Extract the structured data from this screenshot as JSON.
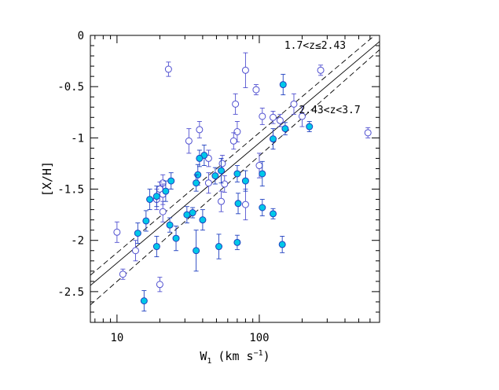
{
  "chart_data": {
    "type": "scatter",
    "xscale": "log",
    "xlim": [
      6.5,
      700
    ],
    "ylim": [
      -2.8,
      0
    ],
    "xlabel": "W",
    "xlabel_sub": "1",
    "xlabel_units": "(km s",
    "xlabel_units_sup": "−1",
    "xlabel_units_close": ")",
    "ylabel": "[X/H]",
    "x_ticks": [
      {
        "value": 10,
        "label": "10"
      },
      {
        "value": 100,
        "label": "100"
      }
    ],
    "y_ticks": [
      {
        "value": 0,
        "label": "0"
      },
      {
        "value": -0.5,
        "label": "-0.5"
      },
      {
        "value": -1,
        "label": "-1"
      },
      {
        "value": -1.5,
        "label": "-1.5"
      },
      {
        "value": -2,
        "label": "-2"
      },
      {
        "value": -2.5,
        "label": "-2.5"
      }
    ],
    "annotations": [
      {
        "text": "1.7<z≤2.43",
        "x": 150,
        "y": -0.1
      },
      {
        "text": "2.43<z<3.7",
        "x": 190,
        "y": -0.73
      }
    ],
    "fit_lines": [
      {
        "style": "solid",
        "points": [
          [
            6.5,
            -2.44
          ],
          [
            700,
            -0.06
          ]
        ]
      },
      {
        "style": "dashed",
        "points": [
          [
            6.5,
            -2.34
          ],
          [
            700,
            0.04
          ]
        ]
      },
      {
        "style": "dashed",
        "points": [
          [
            6.5,
            -2.63
          ],
          [
            700,
            -0.14
          ]
        ]
      }
    ],
    "colors": {
      "open": "#5050d0",
      "filled_fill": "#00c8e8",
      "filled_stroke": "#2040c0",
      "line": "#000000"
    },
    "series": [
      {
        "marker": "open",
        "points": [
          {
            "x": 23,
            "y": -0.33,
            "err": 0.07
          },
          {
            "x": 80,
            "y": -0.34,
            "err": 0.17
          },
          {
            "x": 270,
            "y": -0.34,
            "err": 0.05
          },
          {
            "x": 95,
            "y": -0.53,
            "err": 0.05
          },
          {
            "x": 68,
            "y": -0.67,
            "err": 0.1
          },
          {
            "x": 175,
            "y": -0.67,
            "err": 0.1
          },
          {
            "x": 105,
            "y": -0.79,
            "err": 0.08
          },
          {
            "x": 200,
            "y": -0.79,
            "err": 0.1
          },
          {
            "x": 125,
            "y": -0.8,
            "err": 0.06
          },
          {
            "x": 140,
            "y": -0.83,
            "err": 0.06
          },
          {
            "x": 38,
            "y": -0.92,
            "err": 0.08
          },
          {
            "x": 70,
            "y": -0.94,
            "err": 0.1
          },
          {
            "x": 580,
            "y": -0.95,
            "err": 0.05
          },
          {
            "x": 32,
            "y": -1.03,
            "err": 0.12
          },
          {
            "x": 66,
            "y": -1.03,
            "err": 0.08
          },
          {
            "x": 44,
            "y": -1.2,
            "err": 0.08
          },
          {
            "x": 55,
            "y": -1.25,
            "err": 0.08
          },
          {
            "x": 100,
            "y": -1.27,
            "err": 0.12
          },
          {
            "x": 21,
            "y": -1.44,
            "err": 0.08
          },
          {
            "x": 44,
            "y": -1.44,
            "err": 0.1
          },
          {
            "x": 57,
            "y": -1.45,
            "err": 0.08
          },
          {
            "x": 20,
            "y": -1.5,
            "err": 0.07
          },
          {
            "x": 21,
            "y": -1.55,
            "err": 0.1
          },
          {
            "x": 19,
            "y": -1.6,
            "err": 0.1
          },
          {
            "x": 54,
            "y": -1.62,
            "err": 0.1
          },
          {
            "x": 80,
            "y": -1.65,
            "err": 0.15
          },
          {
            "x": 21,
            "y": -1.72,
            "err": 0.1
          },
          {
            "x": 10,
            "y": -1.92,
            "err": 0.1
          },
          {
            "x": 13.5,
            "y": -2.1,
            "err": 0.1
          },
          {
            "x": 11,
            "y": -2.33,
            "err": 0.05
          },
          {
            "x": 20,
            "y": -2.43,
            "err": 0.07
          }
        ]
      },
      {
        "marker": "filled",
        "points": [
          {
            "x": 147,
            "y": -0.48,
            "err": 0.1
          },
          {
            "x": 152,
            "y": -0.91,
            "err": 0.06
          },
          {
            "x": 225,
            "y": -0.89,
            "err": 0.05
          },
          {
            "x": 125,
            "y": -1.01,
            "err": 0.1
          },
          {
            "x": 41,
            "y": -1.17,
            "err": 0.1
          },
          {
            "x": 38,
            "y": -1.2,
            "err": 0.08
          },
          {
            "x": 54,
            "y": -1.32,
            "err": 0.12
          },
          {
            "x": 105,
            "y": -1.35,
            "err": 0.12
          },
          {
            "x": 37,
            "y": -1.36,
            "err": 0.1
          },
          {
            "x": 70,
            "y": -1.35,
            "err": 0.08
          },
          {
            "x": 49,
            "y": -1.37,
            "err": 0.08
          },
          {
            "x": 24,
            "y": -1.42,
            "err": 0.08
          },
          {
            "x": 80,
            "y": -1.42,
            "err": 0.1
          },
          {
            "x": 36,
            "y": -1.44,
            "err": 0.08
          },
          {
            "x": 22,
            "y": -1.52,
            "err": 0.1
          },
          {
            "x": 19,
            "y": -1.57,
            "err": 0.1
          },
          {
            "x": 17,
            "y": -1.6,
            "err": 0.1
          },
          {
            "x": 71,
            "y": -1.64,
            "err": 0.1
          },
          {
            "x": 105,
            "y": -1.68,
            "err": 0.08
          },
          {
            "x": 34,
            "y": -1.73,
            "err": 0.05
          },
          {
            "x": 31,
            "y": -1.75,
            "err": 0.08
          },
          {
            "x": 125,
            "y": -1.74,
            "err": 0.05
          },
          {
            "x": 40,
            "y": -1.8,
            "err": 0.1
          },
          {
            "x": 16,
            "y": -1.81,
            "err": 0.1
          },
          {
            "x": 23.5,
            "y": -1.85,
            "err": 0.07
          },
          {
            "x": 14,
            "y": -1.93,
            "err": 0.1
          },
          {
            "x": 26,
            "y": -1.98,
            "err": 0.12
          },
          {
            "x": 70,
            "y": -2.02,
            "err": 0.07
          },
          {
            "x": 19,
            "y": -2.06,
            "err": 0.1
          },
          {
            "x": 145,
            "y": -2.04,
            "err": 0.08
          },
          {
            "x": 52,
            "y": -2.06,
            "err": 0.12
          },
          {
            "x": 36,
            "y": -2.1,
            "err": 0.2
          },
          {
            "x": 15.5,
            "y": -2.59,
            "err": 0.1
          }
        ]
      }
    ]
  }
}
